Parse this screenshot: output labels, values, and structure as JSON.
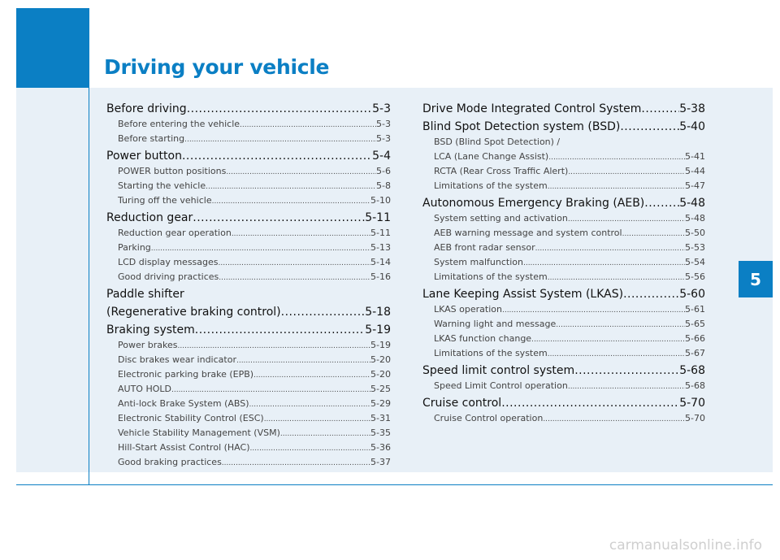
{
  "header": {
    "title": "Driving your vehicle"
  },
  "chapter": "5",
  "toc_left": [
    {
      "kind": "main",
      "text": "Before driving",
      "page": "5-3"
    },
    {
      "kind": "sub",
      "text": "Before entering the vehicle ",
      "page": "5-3"
    },
    {
      "kind": "sub",
      "text": "Before starting",
      "page": "5-3"
    },
    {
      "kind": "main",
      "text": "Power button ",
      "page": "5-4"
    },
    {
      "kind": "sub",
      "text": "POWER button positions ",
      "page": "5-6"
    },
    {
      "kind": "sub",
      "text": "Starting the vehicle",
      "page": "5-8"
    },
    {
      "kind": "sub",
      "text": "Turing off the vehicle ",
      "page": "5-10"
    },
    {
      "kind": "main",
      "text": "Reduction gear ",
      "page": "5-11"
    },
    {
      "kind": "sub",
      "text": "Reduction gear operation ",
      "page": "5-11"
    },
    {
      "kind": "sub",
      "text": "Parking ",
      "page": "5-13"
    },
    {
      "kind": "sub",
      "text": "LCD display messages ",
      "page": "5-14"
    },
    {
      "kind": "sub",
      "text": "Good driving practices ",
      "page": "5-16"
    },
    {
      "kind": "main-plain",
      "text": "Paddle shifter"
    },
    {
      "kind": "main",
      "text": "(Regenerative braking control) ",
      "page": "5-18"
    },
    {
      "kind": "main",
      "text": "Braking system",
      "page": "5-19"
    },
    {
      "kind": "sub",
      "text": "Power brakes ",
      "page": "5-19"
    },
    {
      "kind": "sub",
      "text": "Disc brakes wear indicator ",
      "page": "5-20"
    },
    {
      "kind": "sub",
      "text": "Electronic parking brake (EPB) ",
      "page": "5-20"
    },
    {
      "kind": "sub",
      "text": "AUTO HOLD ",
      "page": "5-25"
    },
    {
      "kind": "sub",
      "text": "Anti-lock Brake System (ABS) ",
      "page": "5-29"
    },
    {
      "kind": "sub",
      "text": "Electronic Stability Control (ESC)",
      "page": "5-31"
    },
    {
      "kind": "sub",
      "text": "Vehicle Stability Management (VSM)",
      "page": "5-35"
    },
    {
      "kind": "sub",
      "text": "Hill-Start Assist Control (HAC) ",
      "page": "5-36"
    },
    {
      "kind": "sub",
      "text": "Good braking practices",
      "page": "5-37"
    }
  ],
  "toc_right": [
    {
      "kind": "main",
      "text": "Drive Mode Integrated Control System ",
      "page": "5-38"
    },
    {
      "kind": "main",
      "text": "Blind Spot Detection system (BSD) ",
      "page": "5-40"
    },
    {
      "kind": "sub-plain",
      "text": "BSD (Blind Spot Detection) /"
    },
    {
      "kind": "sub",
      "text": "LCA (Lane Change Assist) ",
      "page": "5-41"
    },
    {
      "kind": "sub",
      "text": "RCTA (Rear Cross Traffic Alert) ",
      "page": "5-44"
    },
    {
      "kind": "sub",
      "text": "Limitations of the system ",
      "page": "5-47"
    },
    {
      "kind": "main",
      "text": "Autonomous Emergency Braking (AEB)",
      "page": "5-48"
    },
    {
      "kind": "sub",
      "text": "System setting and activation",
      "page": "5-48"
    },
    {
      "kind": "sub",
      "text": "AEB warning message and system control ",
      "page": "5-50"
    },
    {
      "kind": "sub",
      "text": "AEB front radar sensor ",
      "page": "5-53"
    },
    {
      "kind": "sub",
      "text": "System malfunction ",
      "page": "5-54"
    },
    {
      "kind": "sub",
      "text": "Limitations of the system ",
      "page": "5-56"
    },
    {
      "kind": "main",
      "text": "Lane Keeping Assist System (LKAS) ",
      "page": "5-60"
    },
    {
      "kind": "sub",
      "text": "LKAS operation ",
      "page": "5-61"
    },
    {
      "kind": "sub",
      "text": "Warning light and message ",
      "page": "5-65"
    },
    {
      "kind": "sub",
      "text": "LKAS function change ",
      "page": "5-66"
    },
    {
      "kind": "sub",
      "text": "Limitations of the system ",
      "page": "5-67"
    },
    {
      "kind": "main",
      "text": "Speed limit control system ",
      "page": "5-68"
    },
    {
      "kind": "sub",
      "text": "Speed Limit Control operation ",
      "page": "5-68"
    },
    {
      "kind": "main",
      "text": "Cruise control ",
      "page": "5-70"
    },
    {
      "kind": "sub",
      "text": "Cruise Control operation ",
      "page": "5-70"
    }
  ],
  "footer": {
    "watermark": "carmanualsonline.info"
  }
}
